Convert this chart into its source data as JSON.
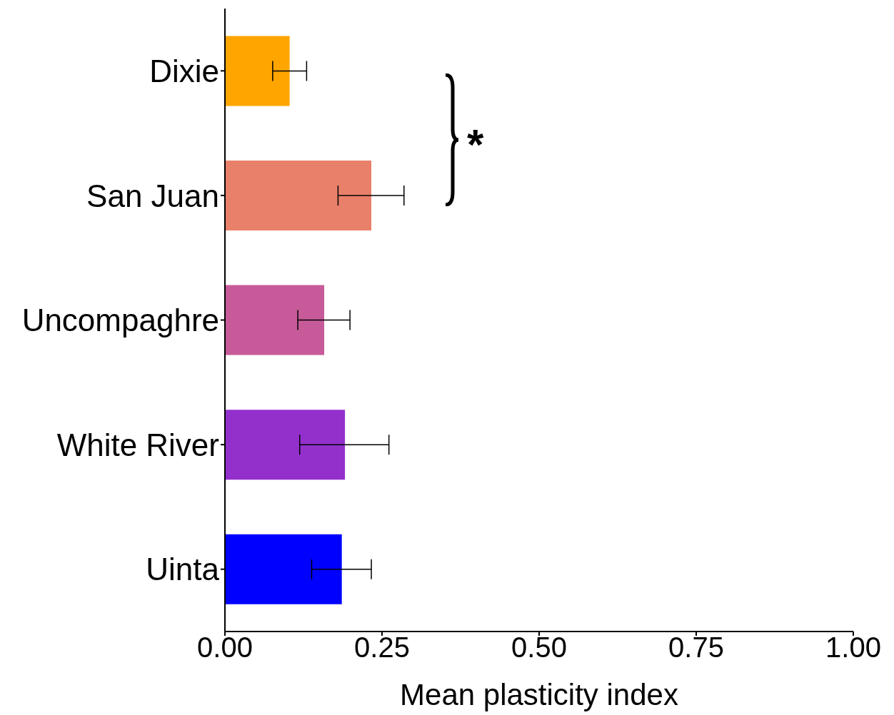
{
  "chart_data": {
    "type": "bar",
    "orientation": "horizontal",
    "categories": [
      "Dixie",
      "San Juan",
      "Uncompaghre",
      "White River",
      "Uinta"
    ],
    "values": [
      0.103,
      0.233,
      0.158,
      0.191,
      0.186
    ],
    "colors": [
      "#ffa500",
      "#e9806a",
      "#c75b99",
      "#9330cc",
      "#0000ff"
    ],
    "errors": [
      [
        0.076,
        0.13
      ],
      [
        0.18,
        0.285
      ],
      [
        0.116,
        0.199
      ],
      [
        0.119,
        0.261
      ],
      [
        0.138,
        0.233
      ]
    ],
    "xlim": [
      0,
      1
    ],
    "xticks": [
      {
        "value": 0,
        "label": "0.00"
      },
      {
        "value": 0.25,
        "label": "0.25"
      },
      {
        "value": 0.5,
        "label": "0.50"
      },
      {
        "value": 0.75,
        "label": "0.75"
      },
      {
        "value": 1,
        "label": "1.00"
      }
    ],
    "xlabel": "Mean plasticity index",
    "annotations": [
      "*"
    ]
  }
}
